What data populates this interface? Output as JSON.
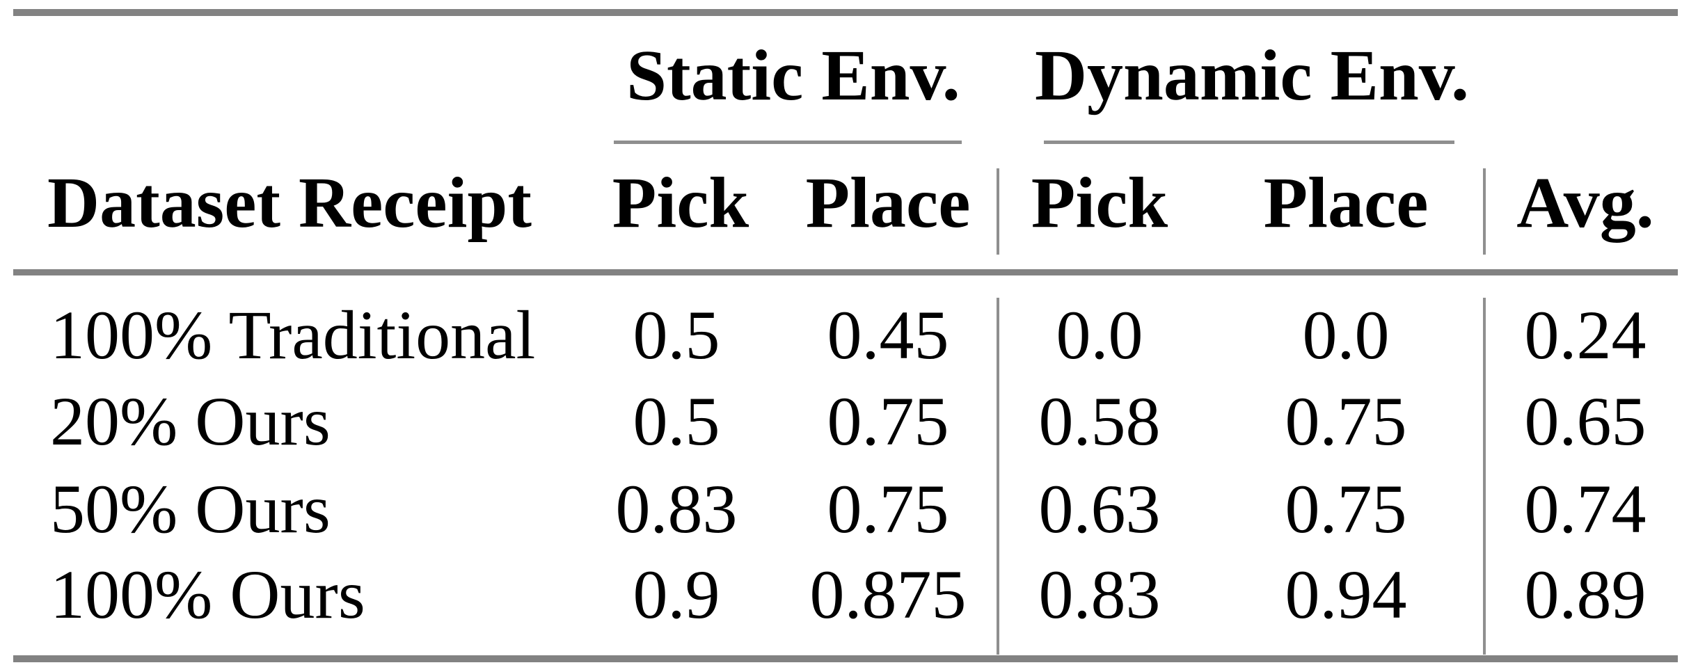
{
  "page": {
    "background": "#ffffff"
  },
  "colors": {
    "rule_thick": "#828282",
    "rule_thin": "#8f8f8f",
    "text": "#000000"
  },
  "chart_data": {
    "type": "table",
    "group_headers": [
      "Static Env.",
      "Dynamic Env."
    ],
    "columns": [
      "Dataset Receipt",
      "Pick",
      "Place",
      "Pick",
      "Place",
      "Avg."
    ],
    "rows": [
      {
        "label": "100% Traditional",
        "values": [
          "0.5",
          "0.45",
          "0.0",
          "0.0",
          "0.24"
        ]
      },
      {
        "label": "20% Ours",
        "values": [
          "0.5",
          "0.75",
          "0.58",
          "0.75",
          "0.65"
        ]
      },
      {
        "label": "50% Ours",
        "values": [
          "0.83",
          "0.75",
          "0.63",
          "0.75",
          "0.74"
        ]
      },
      {
        "label": "100% Ours",
        "values": [
          "0.9",
          "0.875",
          "0.83",
          "0.94",
          "0.89"
        ]
      }
    ]
  }
}
